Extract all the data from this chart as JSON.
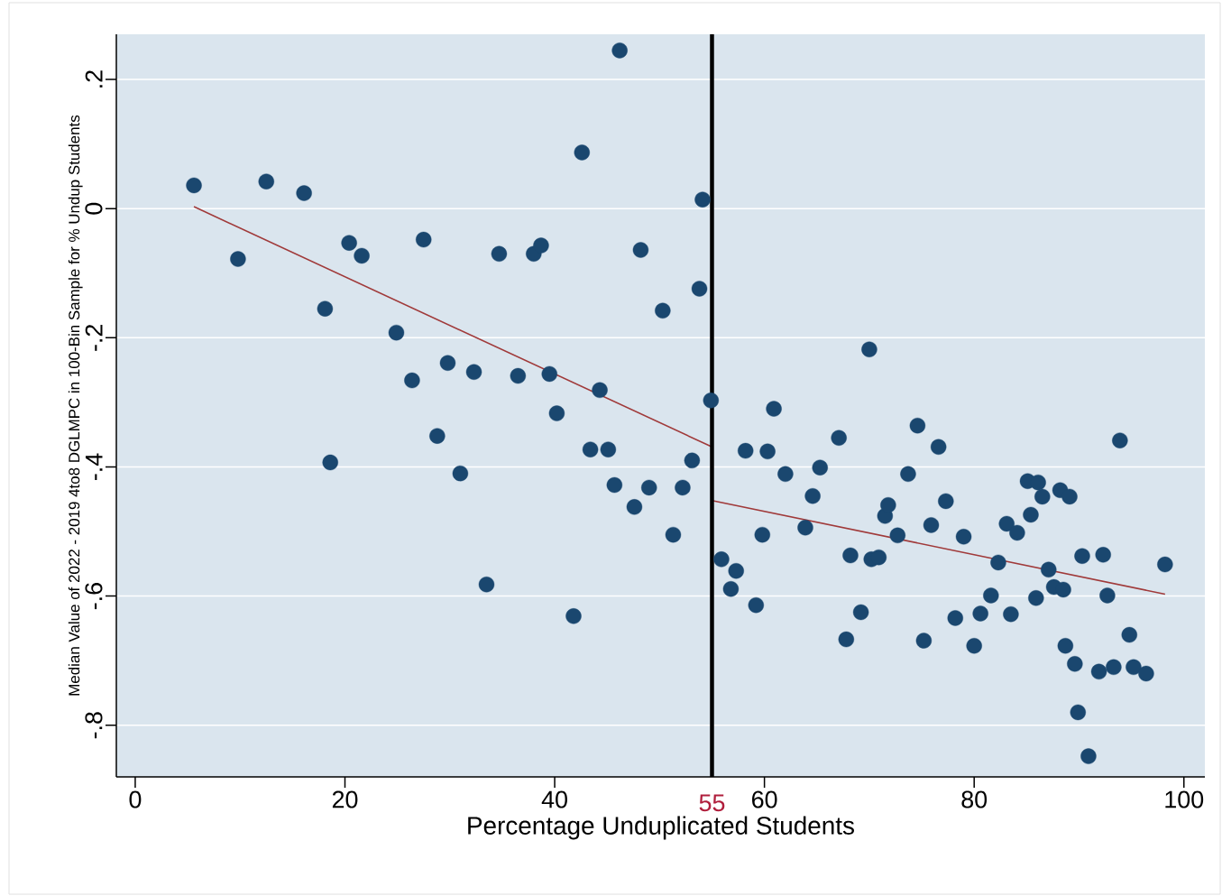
{
  "chart_data": {
    "type": "scatter",
    "xlabel": "Percentage Unduplicated Students",
    "ylabel": "Median Value of 2022 - 2019 4to8 DGLMPC in 100-Bin Sample for % Undup Students",
    "xlim": [
      -1.8,
      102
    ],
    "ylim": [
      -0.88,
      0.27
    ],
    "xticks": [
      0,
      20,
      40,
      60,
      80,
      100
    ],
    "yticks": [
      {
        "value": 0.2,
        "label": ".2"
      },
      {
        "value": 0,
        "label": "0"
      },
      {
        "value": -0.2,
        "label": "-.2"
      },
      {
        "value": -0.4,
        "label": "-.4"
      },
      {
        "value": -0.6,
        "label": "-.6"
      },
      {
        "value": -0.8,
        "label": "-.8"
      }
    ],
    "grid": "y",
    "ref_lines": [
      {
        "axis": "x",
        "value": 55,
        "label": "55",
        "color": "#000000"
      }
    ],
    "series": [
      {
        "marker": "circle",
        "color": "#1a476f",
        "x": [
          5.6,
          9.8,
          12.5,
          16.1,
          18.1,
          18.6,
          20.4,
          21.6,
          24.9,
          26.4,
          27.5,
          28.8,
          29.8,
          31.0,
          32.3,
          33.5,
          34.7,
          36.5,
          38.0,
          38.7,
          39.5,
          40.2,
          41.8,
          42.6,
          43.4,
          44.3,
          45.1,
          45.7,
          46.2,
          47.6,
          48.2,
          49.0,
          50.3,
          51.3,
          52.2,
          53.1,
          53.8,
          54.1,
          54.9,
          55.9,
          56.8,
          57.3,
          58.2,
          59.2,
          59.8,
          60.3,
          60.9,
          62.0,
          63.9,
          64.6,
          65.3,
          67.1,
          67.8,
          68.2,
          69.2,
          70.0,
          70.2,
          70.9,
          71.5,
          71.8,
          72.7,
          73.7,
          74.6,
          75.2,
          75.9,
          76.6,
          77.3,
          78.2,
          79.0,
          80.0,
          80.6,
          81.6,
          82.3,
          83.1,
          83.5,
          84.1,
          85.1,
          85.4,
          85.9,
          86.1,
          86.5,
          87.1,
          87.6,
          88.2,
          88.5,
          88.7,
          89.1,
          89.6,
          89.9,
          90.3,
          90.9,
          91.9,
          92.3,
          92.7,
          93.3,
          93.9,
          94.8,
          95.2,
          96.4,
          98.2
        ],
        "values": [
          0.036,
          -0.078,
          0.042,
          0.024,
          -0.155,
          -0.393,
          -0.053,
          -0.073,
          -0.192,
          -0.266,
          -0.048,
          -0.352,
          -0.239,
          -0.41,
          -0.253,
          -0.582,
          -0.07,
          -0.259,
          -0.07,
          -0.057,
          -0.256,
          -0.317,
          -0.631,
          0.087,
          -0.373,
          -0.281,
          -0.373,
          -0.428,
          0.245,
          -0.462,
          -0.064,
          -0.432,
          -0.158,
          -0.505,
          -0.432,
          -0.39,
          -0.124,
          0.014,
          -0.297,
          -0.543,
          -0.589,
          -0.561,
          -0.375,
          -0.614,
          -0.505,
          -0.376,
          -0.31,
          -0.411,
          -0.494,
          -0.445,
          -0.401,
          -0.355,
          -0.667,
          -0.537,
          -0.625,
          -0.218,
          -0.543,
          -0.54,
          -0.476,
          -0.459,
          -0.506,
          -0.411,
          -0.336,
          -0.669,
          -0.49,
          -0.369,
          -0.453,
          -0.634,
          -0.508,
          -0.677,
          -0.627,
          -0.599,
          -0.548,
          -0.488,
          -0.628,
          -0.502,
          -0.422,
          -0.474,
          -0.603,
          -0.424,
          -0.446,
          -0.559,
          -0.586,
          -0.436,
          -0.59,
          -0.677,
          -0.446,
          -0.705,
          -0.78,
          -0.538,
          -0.848,
          -0.717,
          -0.536,
          -0.599,
          -0.71,
          -0.359,
          -0.66,
          -0.71,
          -0.72,
          -0.551
        ]
      },
      {
        "type": "line",
        "marker": "none",
        "color": "#a03a3a",
        "x": [
          5.6,
          55.0
        ],
        "values": [
          0.003,
          -0.369
        ]
      },
      {
        "type": "line",
        "marker": "none",
        "color": "#a03a3a",
        "x": [
          55.0,
          98.2
        ],
        "values": [
          -0.452,
          -0.597
        ]
      }
    ]
  }
}
